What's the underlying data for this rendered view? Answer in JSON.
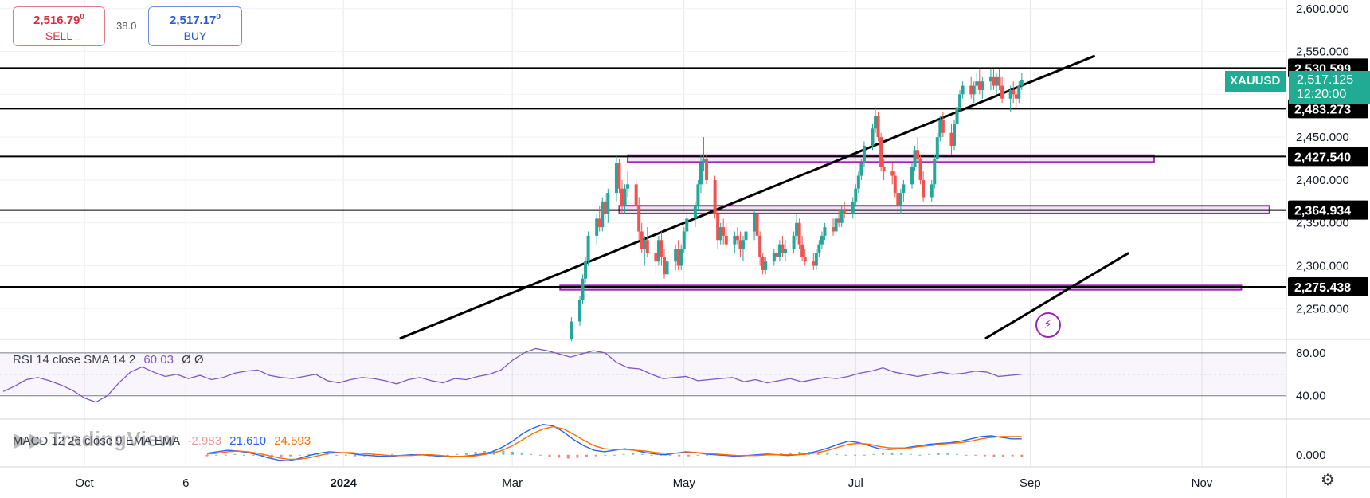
{
  "trade": {
    "sell_price": "2,516.79",
    "sell_price_sup": "0",
    "sell_label": "SELL",
    "spread": "38.0",
    "buy_price": "2,517.17",
    "buy_price_sup": "0",
    "buy_label": "BUY"
  },
  "symbol": {
    "name": "XAUUSD",
    "last_price": "2,517.125",
    "countdown": "12:20:00",
    "badge_color": "#22ab94"
  },
  "watermark": "TradingView",
  "icons": [
    "bolt-icon",
    "settings-icon",
    "tradingview-logo"
  ],
  "colors": {
    "up_candle": "#26a69a",
    "down_candle": "#ef5350",
    "level_line": "#000000",
    "zone": "#9c27b0",
    "rsi": "#7e57c2",
    "macd": "#2962ff",
    "signal": "#ff6d00"
  },
  "chart_data": {
    "type": "candlestick",
    "price_axis": {
      "ticks": [
        2250,
        2300,
        2350,
        2400,
        2450,
        2500,
        2550,
        2600
      ],
      "tick_labels": [
        "2,250.000",
        "2,300.000",
        "2,350.000",
        "2,400.000",
        "2,450.000",
        "2,500.000",
        "2,550.000",
        "2,600.000"
      ],
      "range": [
        2215,
        2610
      ]
    },
    "time_axis": {
      "labels": [
        "Oct",
        "6",
        "2024",
        "Mar",
        "May",
        "Jul",
        "Sep",
        "Nov"
      ],
      "label_dates": [
        "2023-10-01",
        "2023-11-06",
        "2024-01-01",
        "2024-03-01",
        "2024-05-01",
        "2024-07-01",
        "2024-09-01",
        "2024-11-01"
      ]
    },
    "horizontal_levels": [
      {
        "price": 2530.599,
        "label": "2,530.599"
      },
      {
        "price": 2483.273,
        "label": "2,483.273"
      },
      {
        "price": 2427.54,
        "label": "2,427.540"
      },
      {
        "price": 2364.934,
        "label": "2,364.934"
      },
      {
        "price": 2275.438,
        "label": "2,275.438"
      }
    ],
    "zones": [
      {
        "start": "2024-04-11",
        "end": "2024-10-15",
        "low": 2421,
        "high": 2429
      },
      {
        "start": "2024-04-08",
        "end": "2024-11-25",
        "low": 2361,
        "high": 2370
      },
      {
        "start": "2024-03-18",
        "end": "2024-11-15",
        "low": 2272,
        "high": 2277
      }
    ],
    "trendlines": [
      {
        "from": {
          "date": "2024-01-21",
          "price": 2215
        },
        "to": {
          "date": "2024-09-24",
          "price": 2545
        }
      },
      {
        "from": {
          "date": "2024-08-16",
          "price": 2215
        },
        "to": {
          "date": "2024-10-06",
          "price": 2315
        }
      }
    ],
    "candles_note": "OHLC approximated from pixels",
    "candles": [
      [
        "2024-03-22",
        2215,
        2240,
        2212,
        2235
      ],
      [
        "2024-03-25",
        2235,
        2265,
        2230,
        2260
      ],
      [
        "2024-03-26",
        2260,
        2290,
        2255,
        2285
      ],
      [
        "2024-03-27",
        2285,
        2310,
        2280,
        2305
      ],
      [
        "2024-03-28",
        2305,
        2340,
        2300,
        2335
      ],
      [
        "2024-03-31",
        2335,
        2360,
        2325,
        2355
      ],
      [
        "2024-04-01",
        2355,
        2370,
        2340,
        2345
      ],
      [
        "2024-04-02",
        2345,
        2380,
        2340,
        2375
      ],
      [
        "2024-04-03",
        2375,
        2385,
        2355,
        2360
      ],
      [
        "2024-04-04",
        2360,
        2390,
        2350,
        2385
      ],
      [
        "2024-04-07",
        2385,
        2430,
        2375,
        2420
      ],
      [
        "2024-04-08",
        2420,
        2425,
        2385,
        2390
      ],
      [
        "2024-04-09",
        2390,
        2400,
        2360,
        2370
      ],
      [
        "2024-04-10",
        2370,
        2395,
        2360,
        2390
      ],
      [
        "2024-04-11",
        2390,
        2410,
        2380,
        2395
      ],
      [
        "2024-04-14",
        2395,
        2400,
        2365,
        2370
      ],
      [
        "2024-04-15",
        2370,
        2380,
        2330,
        2340
      ],
      [
        "2024-04-16",
        2340,
        2350,
        2315,
        2320
      ],
      [
        "2024-04-17",
        2320,
        2335,
        2300,
        2330
      ],
      [
        "2024-04-18",
        2330,
        2345,
        2310,
        2315
      ],
      [
        "2024-04-21",
        2315,
        2330,
        2290,
        2305
      ],
      [
        "2024-04-22",
        2305,
        2335,
        2300,
        2330
      ],
      [
        "2024-04-23",
        2330,
        2340,
        2300,
        2310
      ],
      [
        "2024-04-24",
        2310,
        2320,
        2285,
        2290
      ],
      [
        "2024-04-25",
        2290,
        2310,
        2280,
        2305
      ],
      [
        "2024-04-28",
        2305,
        2325,
        2295,
        2320
      ],
      [
        "2024-04-29",
        2320,
        2330,
        2295,
        2300
      ],
      [
        "2024-04-30",
        2300,
        2325,
        2295,
        2320
      ],
      [
        "2024-05-01",
        2320,
        2345,
        2315,
        2340
      ],
      [
        "2024-05-02",
        2340,
        2360,
        2330,
        2355
      ],
      [
        "2024-05-05",
        2355,
        2375,
        2345,
        2370
      ],
      [
        "2024-05-06",
        2370,
        2400,
        2365,
        2395
      ],
      [
        "2024-05-07",
        2395,
        2430,
        2385,
        2420
      ],
      [
        "2024-05-08",
        2420,
        2450,
        2410,
        2425
      ],
      [
        "2024-05-09",
        2425,
        2430,
        2395,
        2400
      ],
      [
        "2024-05-12",
        2400,
        2405,
        2355,
        2360
      ],
      [
        "2024-05-13",
        2360,
        2365,
        2320,
        2330
      ],
      [
        "2024-05-14",
        2330,
        2350,
        2325,
        2345
      ],
      [
        "2024-05-15",
        2345,
        2355,
        2325,
        2335
      ],
      [
        "2024-05-16",
        2335,
        2350,
        2320,
        2325
      ],
      [
        "2024-05-19",
        2325,
        2340,
        2315,
        2335
      ],
      [
        "2024-05-20",
        2335,
        2345,
        2325,
        2330
      ],
      [
        "2024-05-21",
        2330,
        2340,
        2310,
        2320
      ],
      [
        "2024-05-22",
        2320,
        2335,
        2305,
        2330
      ],
      [
        "2024-05-23",
        2330,
        2345,
        2320,
        2340
      ],
      [
        "2024-05-26",
        2340,
        2365,
        2330,
        2360
      ],
      [
        "2024-05-27",
        2360,
        2365,
        2330,
        2335
      ],
      [
        "2024-05-28",
        2335,
        2340,
        2300,
        2310
      ],
      [
        "2024-05-29",
        2310,
        2315,
        2290,
        2295
      ],
      [
        "2024-05-30",
        2295,
        2310,
        2290,
        2305
      ],
      [
        "2024-06-02",
        2305,
        2320,
        2300,
        2315
      ],
      [
        "2024-06-03",
        2315,
        2325,
        2305,
        2310
      ],
      [
        "2024-06-04",
        2310,
        2330,
        2305,
        2325
      ],
      [
        "2024-06-05",
        2325,
        2335,
        2310,
        2315
      ],
      [
        "2024-06-06",
        2315,
        2330,
        2305,
        2320
      ],
      [
        "2024-06-09",
        2320,
        2340,
        2315,
        2335
      ],
      [
        "2024-06-10",
        2335,
        2360,
        2330,
        2350
      ],
      [
        "2024-06-11",
        2350,
        2355,
        2320,
        2325
      ],
      [
        "2024-06-12",
        2325,
        2335,
        2305,
        2310
      ],
      [
        "2024-06-13",
        2310,
        2320,
        2300,
        2305
      ],
      [
        "2024-06-16",
        2305,
        2315,
        2295,
        2300
      ],
      [
        "2024-06-17",
        2300,
        2320,
        2295,
        2315
      ],
      [
        "2024-06-18",
        2315,
        2330,
        2310,
        2325
      ],
      [
        "2024-06-19",
        2325,
        2340,
        2320,
        2335
      ],
      [
        "2024-06-20",
        2335,
        2350,
        2330,
        2345
      ],
      [
        "2024-06-23",
        2345,
        2355,
        2335,
        2340
      ],
      [
        "2024-06-24",
        2340,
        2360,
        2335,
        2355
      ],
      [
        "2024-06-25",
        2355,
        2365,
        2345,
        2350
      ],
      [
        "2024-06-26",
        2350,
        2370,
        2345,
        2365
      ],
      [
        "2024-06-27",
        2365,
        2375,
        2355,
        2360
      ],
      [
        "2024-06-30",
        2360,
        2380,
        2355,
        2375
      ],
      [
        "2024-07-01",
        2375,
        2395,
        2370,
        2390
      ],
      [
        "2024-07-02",
        2390,
        2410,
        2385,
        2405
      ],
      [
        "2024-07-03",
        2405,
        2425,
        2400,
        2420
      ],
      [
        "2024-07-04",
        2420,
        2445,
        2415,
        2440
      ],
      [
        "2024-07-07",
        2440,
        2465,
        2435,
        2460
      ],
      [
        "2024-07-08",
        2460,
        2485,
        2455,
        2475
      ],
      [
        "2024-07-09",
        2475,
        2480,
        2445,
        2450
      ],
      [
        "2024-07-10",
        2450,
        2455,
        2410,
        2415
      ],
      [
        "2024-07-11",
        2415,
        2425,
        2400,
        2410
      ],
      [
        "2024-07-14",
        2410,
        2420,
        2395,
        2405
      ],
      [
        "2024-07-15",
        2405,
        2410,
        2380,
        2385
      ],
      [
        "2024-07-16",
        2385,
        2390,
        2360,
        2370
      ],
      [
        "2024-07-17",
        2370,
        2390,
        2360,
        2385
      ],
      [
        "2024-07-18",
        2385,
        2400,
        2375,
        2395
      ],
      [
        "2024-07-21",
        2395,
        2420,
        2390,
        2415
      ],
      [
        "2024-07-22",
        2415,
        2440,
        2410,
        2435
      ],
      [
        "2024-07-23",
        2435,
        2450,
        2420,
        2425
      ],
      [
        "2024-07-24",
        2425,
        2430,
        2395,
        2400
      ],
      [
        "2024-07-25",
        2400,
        2410,
        2375,
        2380
      ],
      [
        "2024-07-28",
        2380,
        2400,
        2375,
        2395
      ],
      [
        "2024-07-29",
        2395,
        2430,
        2390,
        2425
      ],
      [
        "2024-07-30",
        2425,
        2455,
        2420,
        2450
      ],
      [
        "2024-07-31",
        2450,
        2475,
        2445,
        2470
      ],
      [
        "2024-08-01",
        2470,
        2480,
        2450,
        2455
      ],
      [
        "2024-08-04",
        2455,
        2465,
        2430,
        2440
      ],
      [
        "2024-08-05",
        2440,
        2470,
        2435,
        2465
      ],
      [
        "2024-08-06",
        2465,
        2490,
        2460,
        2485
      ],
      [
        "2024-08-07",
        2485,
        2505,
        2480,
        2500
      ],
      [
        "2024-08-08",
        2500,
        2515,
        2495,
        2510
      ],
      [
        "2024-08-11",
        2510,
        2520,
        2495,
        2500
      ],
      [
        "2024-08-12",
        2500,
        2515,
        2490,
        2510
      ],
      [
        "2024-08-13",
        2510,
        2525,
        2500,
        2515
      ],
      [
        "2024-08-14",
        2515,
        2530,
        2500,
        2505
      ],
      [
        "2024-08-15",
        2505,
        2520,
        2495,
        2515
      ],
      [
        "2024-08-18",
        2515,
        2530,
        2505,
        2520
      ],
      [
        "2024-08-19",
        2520,
        2530,
        2505,
        2510
      ],
      [
        "2024-08-20",
        2510,
        2525,
        2500,
        2520
      ],
      [
        "2024-08-21",
        2520,
        2530,
        2505,
        2510
      ],
      [
        "2024-08-22",
        2510,
        2520,
        2490,
        2495
      ],
      [
        "2024-08-25",
        2495,
        2510,
        2480,
        2505
      ],
      [
        "2024-08-26",
        2505,
        2515,
        2490,
        2500
      ],
      [
        "2024-08-27",
        2500,
        2510,
        2485,
        2495
      ],
      [
        "2024-08-28",
        2495,
        2515,
        2490,
        2510
      ],
      [
        "2024-08-29",
        2510,
        2525,
        2505,
        2517
      ]
    ],
    "rsi": {
      "label": "RSI 14 close SMA 14 2",
      "value": "60.03",
      "extra": "Ø Ø",
      "levels": [
        80,
        40
      ],
      "level_labels": [
        "80.00",
        "40.00"
      ],
      "range": [
        19,
        91
      ],
      "values": [
        44,
        49,
        55,
        57,
        54,
        50,
        45,
        38,
        34,
        40,
        52,
        62,
        67,
        62,
        58,
        60,
        56,
        59,
        55,
        57,
        61,
        63,
        64,
        59,
        57,
        56,
        58,
        60,
        54,
        52,
        55,
        57,
        56,
        54,
        51,
        55,
        57,
        54,
        52,
        56,
        55,
        58,
        60,
        64,
        73,
        80,
        84,
        82,
        79,
        76,
        79,
        82,
        80,
        71,
        66,
        65,
        60,
        56,
        57,
        58,
        54,
        55,
        56,
        57,
        53,
        55,
        52,
        54,
        56,
        53,
        55,
        57,
        56,
        58,
        61,
        63,
        66,
        62,
        60,
        58,
        60,
        62,
        60,
        61,
        63,
        62,
        58,
        59,
        60
      ]
    },
    "macd": {
      "label": "MACD 12 26 close 9 EMA EMA",
      "value": "-2.983",
      "macd_value": "21.610",
      "signal_value": "24.593",
      "zero_label": "0.000",
      "range": [
        -15,
        45
      ],
      "histogram": [
        -2,
        -1,
        0,
        1,
        0,
        -1,
        -3,
        -4,
        -3,
        -2,
        -1,
        1,
        2,
        1,
        0,
        -1,
        -2,
        -2,
        -1,
        0,
        1,
        0,
        -1,
        -1,
        -2,
        -1,
        0,
        1,
        2,
        4,
        5,
        6,
        5,
        4,
        3,
        1,
        -1,
        -3,
        -4,
        -5,
        -4,
        -3,
        -2,
        -1,
        0,
        1,
        2,
        1,
        0,
        -1,
        -1,
        -2,
        -2,
        -1,
        0,
        1,
        0,
        -1,
        -2,
        -1,
        0,
        1,
        2,
        3,
        4,
        4,
        3,
        2,
        1,
        0,
        -1,
        0,
        1,
        2,
        3,
        2,
        1,
        0,
        1,
        2,
        2,
        1,
        0,
        -1,
        -2,
        -3,
        -3,
        -2,
        -3
      ],
      "macd_line": [
        2,
        4,
        6,
        5,
        3,
        0,
        -4,
        -7,
        -8,
        -5,
        -1,
        2,
        4,
        3,
        2,
        0,
        -1,
        -2,
        -2,
        -1,
        0,
        0,
        -1,
        -2,
        -3,
        -2,
        -1,
        1,
        4,
        10,
        18,
        28,
        35,
        40,
        38,
        30,
        20,
        12,
        6,
        4,
        6,
        8,
        6,
        3,
        1,
        0,
        2,
        4,
        3,
        1,
        0,
        -1,
        -2,
        -1,
        0,
        1,
        0,
        -1,
        0,
        2,
        5,
        9,
        14,
        18,
        16,
        12,
        8,
        7,
        8,
        10,
        12,
        14,
        15,
        16,
        18,
        21,
        24,
        25,
        23,
        21,
        21
      ],
      "signal_line": [
        1,
        2,
        4,
        5,
        4,
        2,
        -1,
        -4,
        -6,
        -6,
        -4,
        -1,
        2,
        3,
        3,
        2,
        1,
        0,
        -1,
        -1,
        -1,
        0,
        0,
        -1,
        -2,
        -2,
        -2,
        0,
        2,
        6,
        12,
        20,
        28,
        34,
        37,
        34,
        27,
        19,
        12,
        8,
        7,
        7,
        6,
        5,
        3,
        2,
        2,
        3,
        3,
        2,
        1,
        0,
        -1,
        -1,
        -1,
        0,
        0,
        0,
        0,
        1,
        3,
        6,
        10,
        14,
        15,
        14,
        11,
        9,
        9,
        9,
        11,
        12,
        14,
        15,
        16,
        18,
        21,
        23,
        24,
        24,
        24
      ]
    }
  }
}
